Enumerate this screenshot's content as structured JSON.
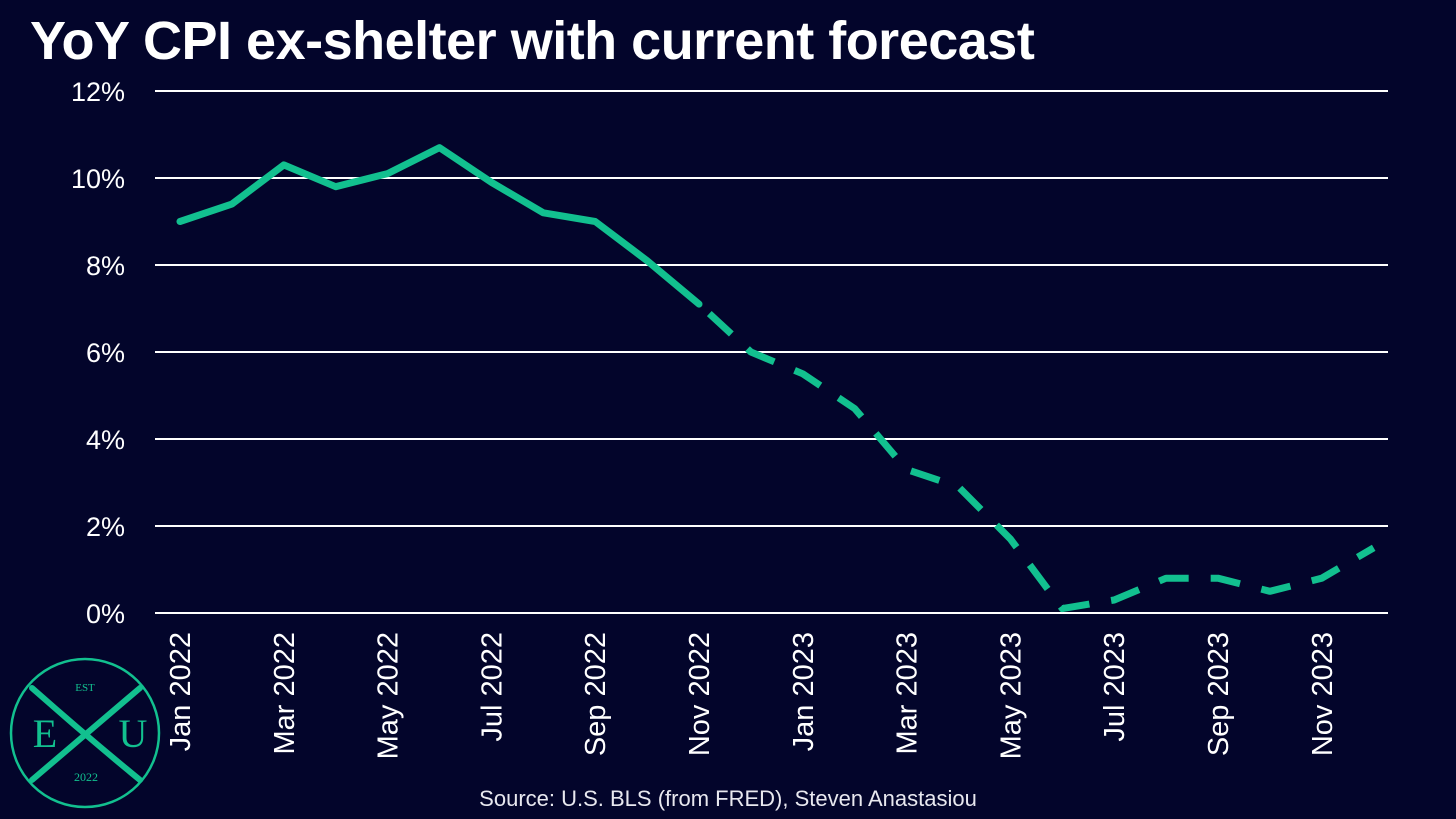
{
  "colors": {
    "background": "#03052b",
    "line": "#12c08f",
    "grid": "#ffffff",
    "text": "#ffffff",
    "logo": "#12c08f"
  },
  "chart_data": {
    "type": "line",
    "title": "YoY CPI ex-shelter with current forecast",
    "xlabel": "",
    "ylabel": "",
    "ylim": [
      0,
      12
    ],
    "grid": true,
    "y_ticks": [
      "0%",
      "2%",
      "4%",
      "6%",
      "8%",
      "10%",
      "12%"
    ],
    "x_tick_labels": [
      "Jan 2022",
      "Mar 2022",
      "May 2022",
      "Jul 2022",
      "Sep 2022",
      "Nov 2022",
      "Jan 2023",
      "Mar 2023",
      "May 2023",
      "Jul 2023",
      "Sep 2023",
      "Nov 2023"
    ],
    "x": [
      "Jan 2022",
      "Feb 2022",
      "Mar 2022",
      "Apr 2022",
      "May 2022",
      "Jun 2022",
      "Jul 2022",
      "Aug 2022",
      "Sep 2022",
      "Oct 2022",
      "Nov 2022",
      "Dec 2022",
      "Jan 2023",
      "Feb 2023",
      "Mar 2023",
      "Apr 2023",
      "May 2023",
      "Jun 2023",
      "Jul 2023",
      "Aug 2023",
      "Sep 2023",
      "Oct 2023",
      "Nov 2023",
      "Dec 2023"
    ],
    "series": [
      {
        "style": "solid",
        "values": [
          9.0,
          9.4,
          10.3,
          9.8,
          10.1,
          10.7,
          9.9,
          9.2,
          9.0,
          8.1,
          7.1,
          null,
          null,
          null,
          null,
          null,
          null,
          null,
          null,
          null,
          null,
          null,
          null,
          null
        ]
      },
      {
        "style": "dashed",
        "values": [
          null,
          null,
          null,
          null,
          null,
          null,
          null,
          null,
          null,
          null,
          7.1,
          6.0,
          5.5,
          4.7,
          3.3,
          2.9,
          1.7,
          0.1,
          0.3,
          0.8,
          0.8,
          0.5,
          0.8,
          1.5
        ]
      }
    ]
  },
  "source": "Source: U.S. BLS (from FRED), Steven Anastasiou",
  "logo": {
    "top_text": "EST",
    "left_letter": "E",
    "right_letter": "U",
    "bottom_text": "2022"
  }
}
